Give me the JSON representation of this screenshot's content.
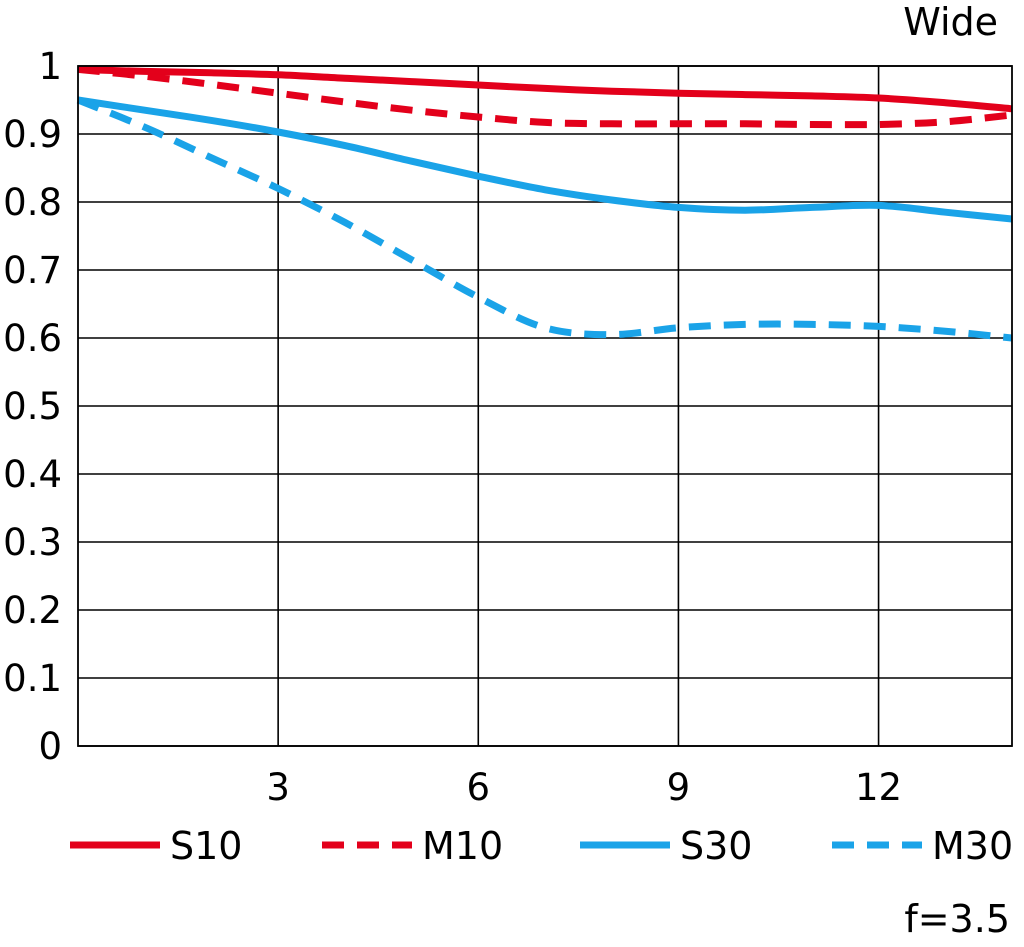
{
  "chart_data": {
    "type": "line",
    "title": "Wide",
    "footnote": "f=3.5",
    "xlabel": "",
    "ylabel": "",
    "xlim": [
      0,
      14
    ],
    "ylim": [
      0,
      1
    ],
    "xticks": [
      3,
      6,
      9,
      12
    ],
    "xtick_labels": [
      "3",
      "6",
      "9",
      "12"
    ],
    "yticks": [
      0,
      0.1,
      0.2,
      0.3,
      0.4,
      0.5,
      0.6,
      0.7,
      0.8,
      0.9,
      1
    ],
    "ytick_labels": [
      "0",
      "0.1",
      "0.2",
      "0.3",
      "0.4",
      "0.5",
      "0.6",
      "0.7",
      "0.8",
      "0.9",
      "1"
    ],
    "grid": true,
    "legend_position": "bottom",
    "series": [
      {
        "name": "S10",
        "color": "#e3001b",
        "dashed": false,
        "x": [
          0,
          1,
          2,
          3,
          4,
          5,
          6,
          7,
          8,
          9,
          10,
          11,
          12,
          13,
          14
        ],
        "y": [
          0.995,
          0.992,
          0.99,
          0.987,
          0.982,
          0.977,
          0.972,
          0.967,
          0.963,
          0.96,
          0.958,
          0.956,
          0.953,
          0.946,
          0.937
        ]
      },
      {
        "name": "M10",
        "color": "#e3001b",
        "dashed": true,
        "x": [
          0,
          1,
          2,
          3,
          4,
          5,
          6,
          7,
          8,
          9,
          10,
          11,
          12,
          13,
          14
        ],
        "y": [
          0.995,
          0.985,
          0.973,
          0.96,
          0.947,
          0.935,
          0.925,
          0.917,
          0.915,
          0.915,
          0.915,
          0.914,
          0.914,
          0.918,
          0.928
        ]
      },
      {
        "name": "S30",
        "color": "#1aa3e8",
        "dashed": false,
        "x": [
          0,
          1,
          2,
          3,
          4,
          5,
          6,
          7,
          8,
          9,
          10,
          11,
          12,
          13,
          14
        ],
        "y": [
          0.95,
          0.935,
          0.92,
          0.903,
          0.883,
          0.86,
          0.838,
          0.818,
          0.803,
          0.792,
          0.788,
          0.792,
          0.795,
          0.785,
          0.775
        ]
      },
      {
        "name": "M30",
        "color": "#1aa3e8",
        "dashed": true,
        "x": [
          0,
          1,
          2,
          3,
          4,
          5,
          6,
          7,
          8,
          9,
          10,
          11,
          12,
          13,
          14
        ],
        "y": [
          0.95,
          0.91,
          0.865,
          0.82,
          0.77,
          0.715,
          0.66,
          0.615,
          0.605,
          0.615,
          0.62,
          0.62,
          0.617,
          0.61,
          0.6
        ]
      }
    ]
  }
}
